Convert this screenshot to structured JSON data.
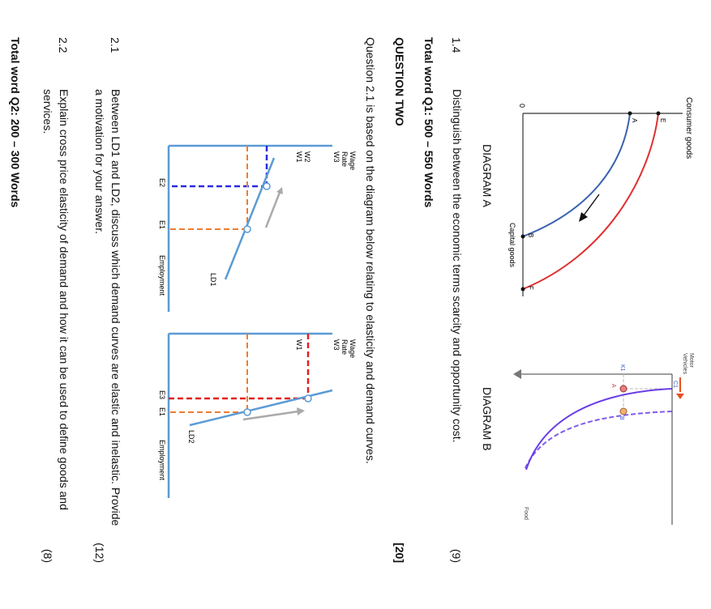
{
  "diagram_a": {
    "caption": "DIAGRAM A",
    "y_label": "Consumer goods",
    "x_label": "Capital goods",
    "origin": "0",
    "points": [
      "A",
      "B",
      "E",
      "F"
    ]
  },
  "diagram_b": {
    "caption": "DIAGRAM B",
    "y_label_1": "Motor",
    "y_label_2": "Vehicles",
    "x_label": "Food",
    "c1": "C1",
    "k1": "K1",
    "points": [
      "A",
      "B"
    ]
  },
  "q1_4": {
    "number": "1.4",
    "text": "Distinguish between the economic terms scarcity and opportunity cost.",
    "marks": "(9)"
  },
  "total_q1": "Total word Q1: 500 – 550 Words",
  "question_two": {
    "title": "QUESTION TWO",
    "marks": "[20]"
  },
  "intro": "Question 2.1 is based on the diagram below relating to elasticity and demand curves.",
  "chart_left": {
    "y_title_1": "Wage",
    "y_title_2": "Rate",
    "w3": "W3",
    "w2": "W2",
    "w1": "W1",
    "e2": "E2",
    "e1": "E1",
    "x_title": "Employment",
    "curve": "LD1"
  },
  "chart_right": {
    "y_title_1": "Wage",
    "y_title_2": "Rate",
    "w3": "W3",
    "w1": "W1",
    "e3": "E3",
    "e1": "E1",
    "x_title": "Employment",
    "curve": "LD2"
  },
  "q2_1": {
    "number": "2.1",
    "line1": "Between LD1 and LD2, discuss which demand curves are elastic and inelastic. Provide",
    "line2": "a motivation for your answer.",
    "marks": "(12)"
  },
  "q2_2": {
    "number": "2.2",
    "line1": "Explain cross price elasticity of demand and how it can be used to define goods and",
    "line2": "services.",
    "marks": "(8)"
  },
  "total_q2": "Total word Q2: 200 – 300 Words"
}
